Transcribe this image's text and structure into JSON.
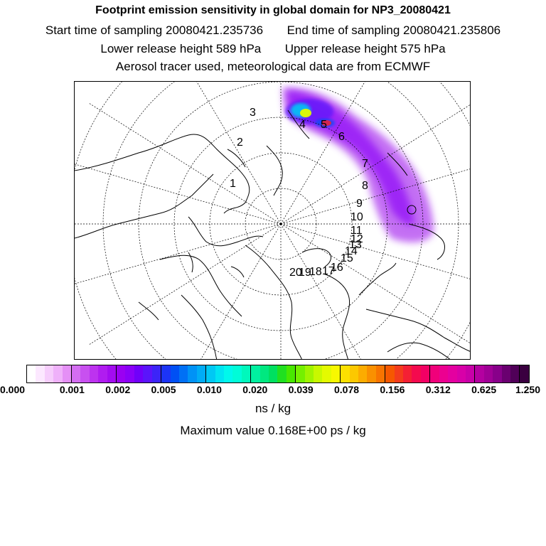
{
  "header": {
    "title": "Footprint emission sensitivity in global domain for NP3_20080421",
    "start_label": "Start time of sampling",
    "start_value": "20080421.235736",
    "end_label": "End time of sampling",
    "end_value": "20080421.235806",
    "lower_label": "Lower release height",
    "lower_value": "589 hPa",
    "upper_label": "Upper release height",
    "upper_value": "575 hPa",
    "note": "Aerosol tracer used, meteorological data are from ECMWF"
  },
  "map": {
    "projection": "polar-stereographic",
    "track_labels": [
      "1",
      "2",
      "3",
      "4",
      "5",
      "6",
      "7",
      "8",
      "9",
      "10",
      "11",
      "12",
      "13",
      "14",
      "15",
      "16",
      "17",
      "18",
      "19",
      "20"
    ]
  },
  "colorbar": {
    "ticks": [
      "0.000",
      "0.001",
      "0.002",
      "0.005",
      "0.010",
      "0.020",
      "0.039",
      "0.078",
      "0.156",
      "0.312",
      "0.625",
      "1.250"
    ],
    "colors": [
      "#ffffff",
      "#fce8ff",
      "#f6cdfc",
      "#efb1fa",
      "#e590f6",
      "#d46ef2",
      "#c850f0",
      "#bd33ef",
      "#b01cf0",
      "#a30cf0",
      "#9a00f2",
      "#8a00f8",
      "#7000fa",
      "#5a14fb",
      "#3c24f8",
      "#1c34f6",
      "#0050f4",
      "#0070f5",
      "#0092f6",
      "#00acf6",
      "#00c8f4",
      "#00e4f2",
      "#00f8ec",
      "#00fcd8",
      "#00f8bc",
      "#00f0a0",
      "#00e880",
      "#00e060",
      "#20e020",
      "#48e800",
      "#74f000",
      "#a0f400",
      "#c8f800",
      "#e4fa00",
      "#f8f800",
      "#fce000",
      "#fcc800",
      "#fcac00",
      "#fa9000",
      "#f87400",
      "#f65800",
      "#f43c1c",
      "#f42034",
      "#f40a4e",
      "#f20064",
      "#f0007a",
      "#ec0090",
      "#e400a0",
      "#d800a8",
      "#c800a8",
      "#b400a0",
      "#a00096",
      "#88008a",
      "#6a0070",
      "#500058",
      "#3a0040"
    ],
    "unit": "ns / kg"
  },
  "footer": {
    "max_label": "Maximum value",
    "max_value": "0.168E+00 ps / kg"
  }
}
